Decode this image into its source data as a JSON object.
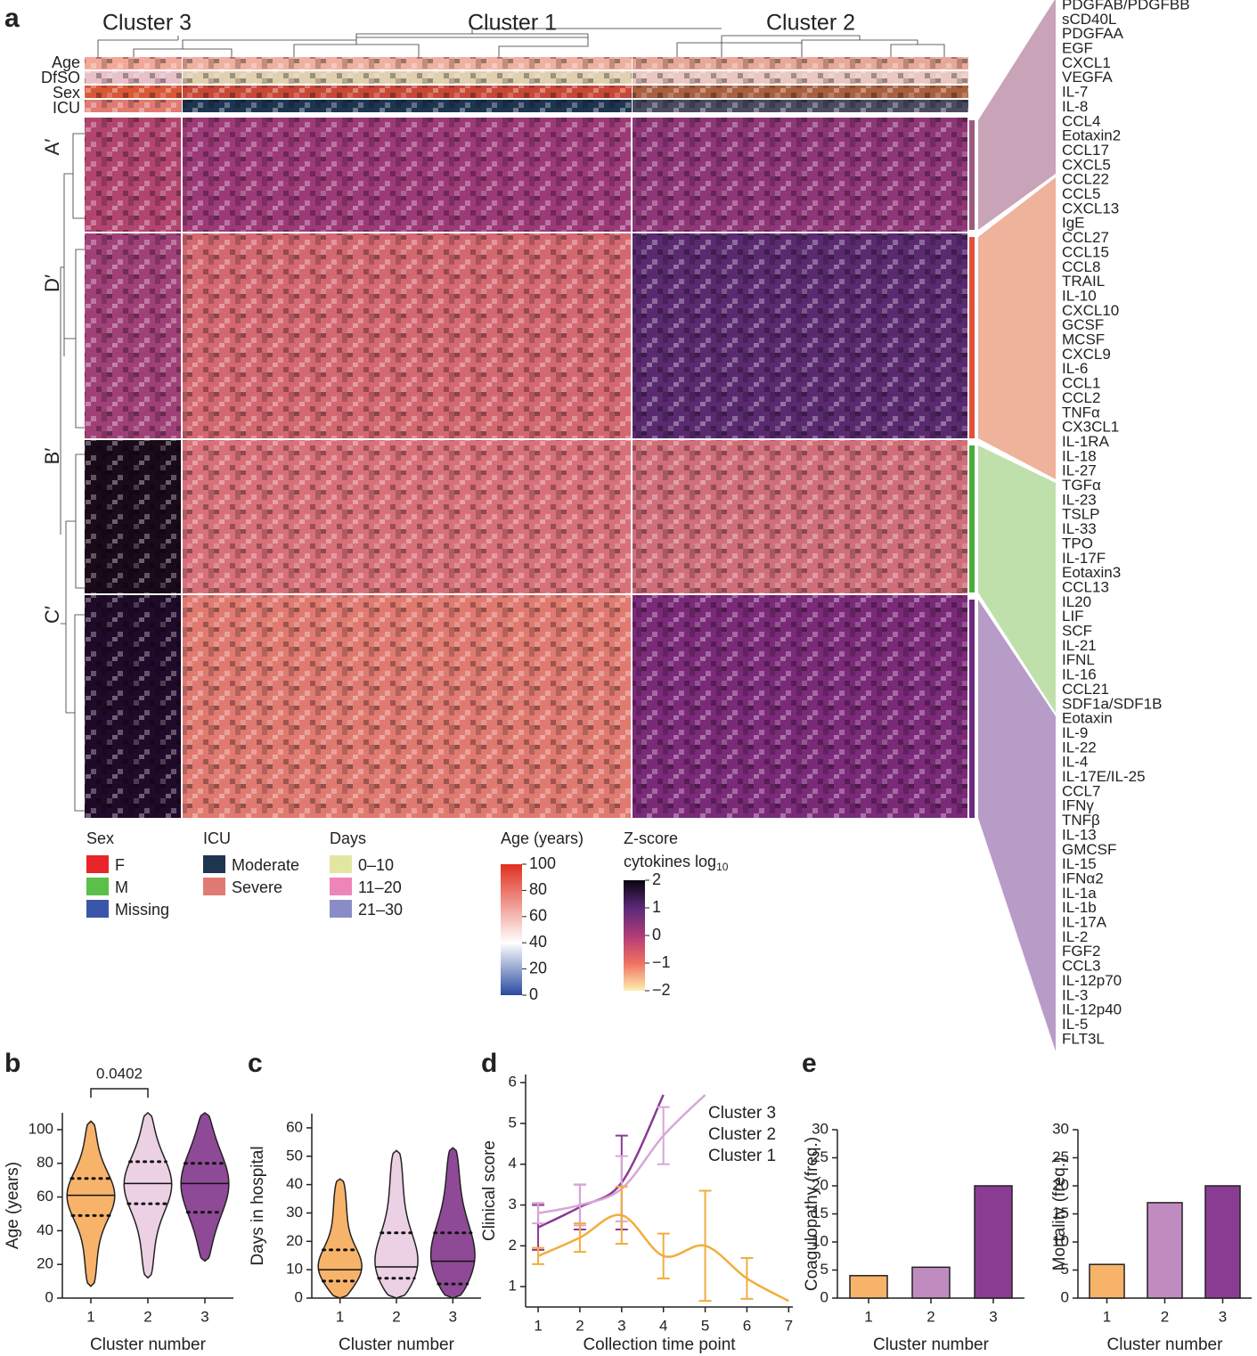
{
  "heatmap": {
    "panel": "a",
    "clusters": [
      "Cluster 3",
      "Cluster 1",
      "Cluster 2"
    ],
    "cluster_colors": [
      "#4a1a6a",
      "#b5602a",
      "#c08cc8"
    ],
    "annotation_rows": [
      "Age",
      "DfSO",
      "Sex",
      "ICU"
    ],
    "modules": [
      "A′",
      "D′",
      "B′",
      "C′"
    ],
    "module_colors": [
      "#9b5a7d",
      "#e0523a",
      "#4aad3a",
      "#6a2a80"
    ],
    "cytokines": [
      [
        "PDGFAB/PDGFBB",
        "sCD40L",
        "PDGFAA",
        "EGF",
        "CXCL1",
        "VEGFA",
        "IL-7",
        "IL-8",
        "CCL4",
        "Eotaxin2",
        "CCL17",
        "CXCL5"
      ],
      [
        "CCL22",
        "CCL5",
        "CXCL13",
        "IgE",
        "CCL27",
        "CCL15",
        "CCL8",
        "TRAIL",
        "IL-10",
        "CXCL10",
        "GCSF",
        "MCSF",
        "CXCL9",
        "IL-6",
        "CCL1",
        "CCL2",
        "TNFα",
        "CX3CL1",
        "IL-1RA",
        "IL-18",
        "IL-27"
      ],
      [
        "TGFα",
        "IL-23",
        "TSLP",
        "IL-33",
        "TPO",
        "IL-17F",
        "Eotaxin3",
        "CCL13",
        "IL20",
        "LIF",
        "SCF",
        "IL-21",
        "IFNL",
        "IL-16",
        "CCL21",
        "SDF1a/SDF1B"
      ],
      [
        "Eotaxin",
        "IL-9",
        "IL-22",
        "IL-4",
        "IL-17E/IL-25",
        "CCL7",
        "IFNγ",
        "TNFβ",
        "IL-13",
        "GMCSF",
        "IL-15",
        "IFNα2",
        "IL-1a",
        "IL-1b",
        "IL-17A",
        "IL-2",
        "FGF2",
        "CCL3",
        "IL-12p70",
        "IL-3",
        "IL-12p40",
        "IL-5",
        "FLT3L"
      ]
    ],
    "legends": [
      {
        "title": "Sex",
        "items": [
          "F",
          "M",
          "Missing"
        ],
        "colors": [
          "#e8252a",
          "#5cbf4a",
          "#3a56a8"
        ]
      },
      {
        "title": "ICU",
        "items": [
          "Moderate",
          "Severe"
        ],
        "colors": [
          "#1e3550",
          "#e07a72"
        ]
      },
      {
        "title": "Days",
        "items": [
          "0–10",
          "11–20",
          "21–30"
        ],
        "colors": [
          "#e3e6a0",
          "#ee85b8",
          "#8a8cc8"
        ]
      }
    ],
    "age_scale": {
      "title": "Age (years)",
      "lim": [
        0,
        100
      ],
      "ticks": [
        0,
        20,
        40,
        60,
        80,
        100
      ]
    },
    "z_scale": {
      "title": "Z-score",
      "subtitle": "cytokines log",
      "subscript": "10",
      "lim": [
        -2,
        2
      ],
      "ticks": [
        2,
        1,
        0,
        {
          "value": -1,
          "label": "−1"
        },
        {
          "value": -2,
          "label": "−2"
        }
      ]
    }
  },
  "chart_data": [
    {
      "type": "violin",
      "panel": "b",
      "y_label": "Age (years)",
      "x_label": "Cluster number",
      "categories": [
        1,
        2,
        3
      ],
      "colors": [
        "#f7b36a",
        "#ecd0e4",
        "#8e4a96"
      ],
      "min": [
        7,
        12,
        22
      ],
      "q1": [
        49,
        56,
        51
      ],
      "median": [
        61,
        68,
        68
      ],
      "q3": [
        71,
        81,
        80
      ],
      "max": [
        105,
        110,
        110
      ],
      "ylim": [
        0,
        110
      ],
      "yticks": [
        0,
        20,
        40,
        60,
        80,
        100
      ],
      "annotation": "0.0402"
    },
    {
      "type": "violin",
      "panel": "c",
      "y_label": "Days in hospital",
      "x_label": "Cluster number",
      "categories": [
        1,
        2,
        3
      ],
      "colors": [
        "#f7b36a",
        "#ecd0e4",
        "#8e4a96"
      ],
      "min": [
        0,
        0,
        0
      ],
      "q1": [
        6,
        7,
        5
      ],
      "median": [
        10,
        11,
        13
      ],
      "q3": [
        17,
        23,
        23
      ],
      "max": [
        42,
        52,
        53
      ],
      "ylim": [
        0,
        65
      ],
      "yticks": [
        0,
        10,
        20,
        30,
        40,
        50,
        60
      ]
    },
    {
      "type": "line",
      "panel": "d",
      "y_label": "Clinical score",
      "x_label": "Collection time point",
      "x": [
        1,
        2,
        3,
        4,
        5,
        6,
        7
      ],
      "series": [
        {
          "name": "Cluster 3",
          "color": "#8a3a96",
          "values": [
            2.45,
            2.95,
            3.55,
            5.7,
            null,
            null,
            null
          ],
          "errors": [
            0.55,
            0.55,
            1.15,
            null,
            null,
            null,
            null
          ]
        },
        {
          "name": "Cluster 2",
          "color": "#d9a6d6",
          "values": [
            2.8,
            3.0,
            3.4,
            4.7,
            5.7,
            null,
            null
          ],
          "errors": [
            0.25,
            0.5,
            0.8,
            0.7,
            null,
            null,
            null
          ]
        },
        {
          "name": "Cluster 1",
          "color": "#f2ad3d",
          "values": [
            1.75,
            2.2,
            2.75,
            1.75,
            2.0,
            1.2,
            0.65
          ],
          "errors": [
            0.2,
            0.35,
            0.7,
            0.55,
            1.35,
            0.5,
            null
          ]
        }
      ],
      "xlim": [
        0.7,
        7.1
      ],
      "xticks": [
        1,
        2,
        3,
        4,
        5,
        6,
        7
      ],
      "ylim": [
        0.5,
        6.2
      ],
      "yticks": [
        1,
        2,
        3,
        4,
        5,
        6
      ]
    },
    {
      "type": "bar",
      "panel": "e",
      "y_label": "Coagulopathy (freq.)",
      "x_label": "Cluster number",
      "categories": [
        1,
        2,
        3
      ],
      "values": [
        4,
        5.5,
        20
      ],
      "colors": [
        "#f7b36a",
        "#c08cc0",
        "#8a3c92"
      ],
      "ylim": [
        0,
        30
      ],
      "yticks": [
        0,
        5,
        10,
        15,
        20,
        25,
        30
      ]
    },
    {
      "type": "bar",
      "y_label": "Mortality (freq.)",
      "x_label": "Cluster number",
      "categories": [
        1,
        2,
        3
      ],
      "values": [
        6,
        17,
        20
      ],
      "colors": [
        "#f7b36a",
        "#c08cc0",
        "#8a3c92"
      ],
      "ylim": [
        0,
        30
      ],
      "yticks": [
        0,
        5,
        10,
        15,
        20,
        25,
        30
      ]
    }
  ]
}
